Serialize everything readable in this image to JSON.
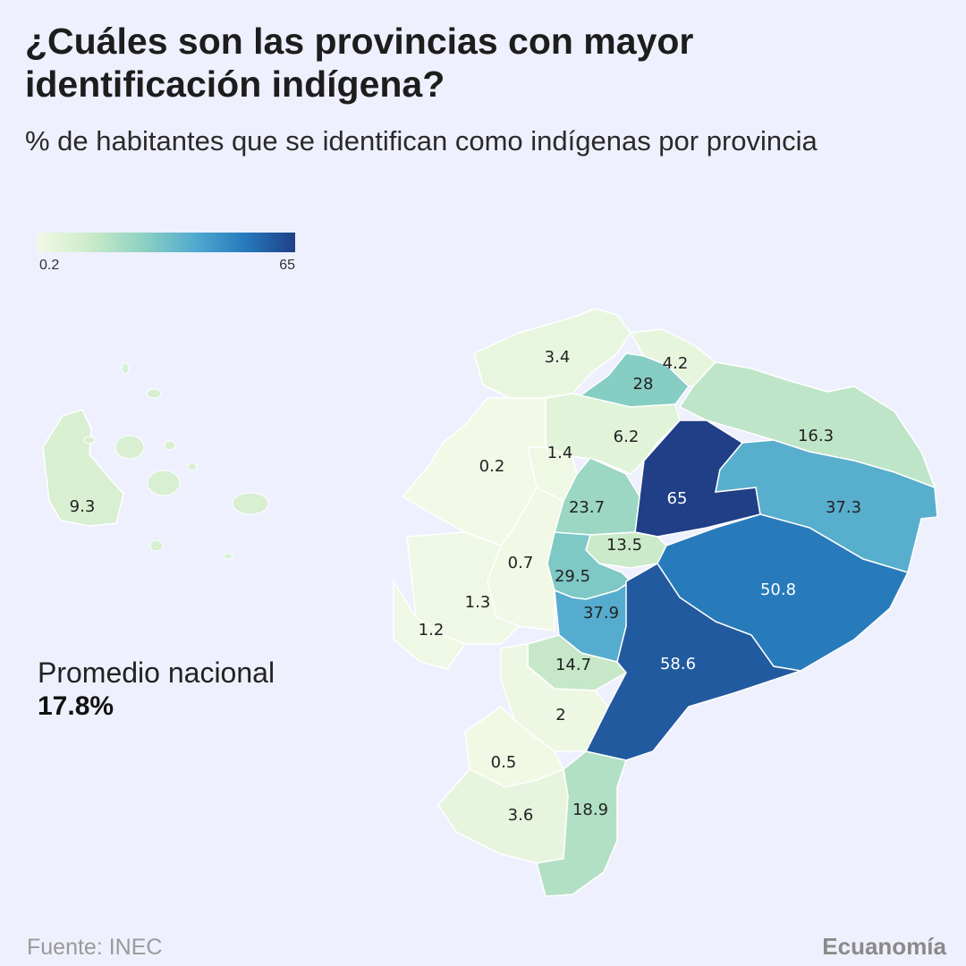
{
  "title": "¿Cuáles son las provincias con mayor identificación indígena?",
  "subtitle": "% de habitantes que se identifican como indígenas por provincia",
  "legend": {
    "min": "0.2",
    "max": "65"
  },
  "average": {
    "label": "Promedio nacional",
    "value": "17.8%"
  },
  "footer": {
    "source": "Fuente: INEC",
    "brand": "Ecuanomía"
  },
  "colors": {
    "background": "#eff0fe",
    "scale": [
      "#f2f9e6",
      "#cdebc9",
      "#8fd3c1",
      "#4fa8cf",
      "#2476b9",
      "#213f86"
    ]
  },
  "chart_data": {
    "type": "choropleth",
    "metric": "% de habitantes que se identifican como indígenas",
    "scale_range": [
      0.2,
      65
    ],
    "regions": [
      {
        "label": "3.4",
        "value": 3.4
      },
      {
        "label": "4.2",
        "value": 4.2
      },
      {
        "label": "28",
        "value": 28
      },
      {
        "label": "16.3",
        "value": 16.3
      },
      {
        "label": "6.2",
        "value": 6.2
      },
      {
        "label": "1.4",
        "value": 1.4
      },
      {
        "label": "0.2",
        "value": 0.2
      },
      {
        "label": "65",
        "value": 65
      },
      {
        "label": "37.3",
        "value": 37.3
      },
      {
        "label": "23.7",
        "value": 23.7
      },
      {
        "label": "13.5",
        "value": 13.5
      },
      {
        "label": "0.7",
        "value": 0.7
      },
      {
        "label": "29.5",
        "value": 29.5
      },
      {
        "label": "1.3",
        "value": 1.3
      },
      {
        "label": "37.9",
        "value": 37.9
      },
      {
        "label": "50.8",
        "value": 50.8
      },
      {
        "label": "1.2",
        "value": 1.2
      },
      {
        "label": "14.7",
        "value": 14.7
      },
      {
        "label": "58.6",
        "value": 58.6
      },
      {
        "label": "2",
        "value": 2
      },
      {
        "label": "0.5",
        "value": 0.5
      },
      {
        "label": "3.6",
        "value": 3.6
      },
      {
        "label": "18.9",
        "value": 18.9
      },
      {
        "label": "9.3",
        "value": 9.3
      }
    ]
  }
}
